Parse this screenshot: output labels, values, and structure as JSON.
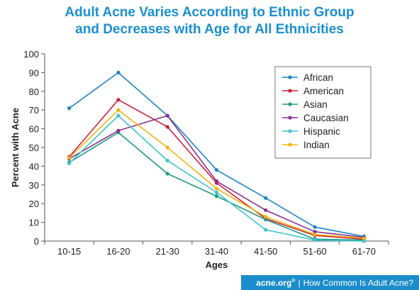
{
  "header": {
    "title_line1": "Adult Acne Varies According to Ethnic Group",
    "title_line2": "and Decreases with Age for All Ethnicities"
  },
  "footer": {
    "brand": "acne.org",
    "brand_mark": "®",
    "separator": "|",
    "caption": "How Common Is Adult Acne?"
  },
  "chart_data": {
    "type": "line",
    "title": "Adult Acne Varies According to Ethnic Group and Decreases with Age for All Ethnicities",
    "xlabel": "Ages",
    "ylabel": "Percent with Acne",
    "categories": [
      "10-15",
      "16-20",
      "21-30",
      "31-40",
      "41-50",
      "51-60",
      "61-70"
    ],
    "ylim": [
      0,
      100
    ],
    "yticks": [
      0,
      10,
      20,
      30,
      40,
      50,
      60,
      70,
      80,
      90,
      100
    ],
    "grid": false,
    "legend_position": "top-right",
    "series": [
      {
        "name": "African",
        "color": "#1b86c6",
        "values": [
          71,
          90,
          67,
          38,
          23,
          7.5,
          2.5
        ]
      },
      {
        "name": "American",
        "color": "#cc1f3a",
        "values": [
          45,
          75.5,
          61,
          31,
          12,
          3,
          1
        ]
      },
      {
        "name": "Asian",
        "color": "#1a9c80",
        "values": [
          42,
          58,
          36,
          24,
          11.5,
          1,
          0.5
        ]
      },
      {
        "name": "Caucasian",
        "color": "#8a2f8e",
        "values": [
          44,
          59,
          67,
          32,
          16.5,
          5,
          2
        ]
      },
      {
        "name": "Hispanic",
        "color": "#3fc4cc",
        "values": [
          41.5,
          67,
          43,
          26,
          6,
          0.5,
          0
        ]
      },
      {
        "name": "Indian",
        "color": "#f0b30e",
        "values": [
          44.5,
          70,
          50,
          28,
          13,
          3.5,
          1.5
        ]
      }
    ]
  }
}
